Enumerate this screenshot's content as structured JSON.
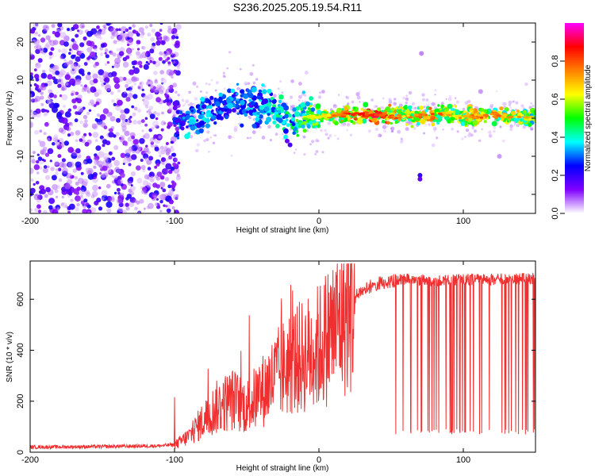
{
  "title": "S236.2025.205.19.54.R11",
  "chart_data": [
    {
      "type": "heatmap",
      "xlabel": "Height of straight line (km)",
      "ylabel": "Frequency (Hz)",
      "xlim": [
        -200,
        150
      ],
      "ylim": [
        -25,
        25
      ],
      "xticks": [
        -200,
        -100,
        0,
        100
      ],
      "yticks": [
        -20,
        -10,
        0,
        10,
        20
      ],
      "colorbar": {
        "label": "Normalized spectral amplitude",
        "range": [
          0.0,
          1.0
        ],
        "ticks": [
          "0.0",
          "0.2",
          "0.4",
          "0.6",
          "0.8"
        ],
        "colormap": [
          "#ffffff",
          "#8000ff",
          "#0000ff",
          "#00ffff",
          "#00ff00",
          "#ffff00",
          "#ff8000",
          "#ff0000",
          "#ff00ff"
        ]
      },
      "ridge": [
        {
          "x": -100,
          "freq": 0.0,
          "amp": 0.25
        },
        {
          "x": -90,
          "freq": -1.0,
          "amp": 0.35
        },
        {
          "x": -80,
          "freq": 0.5,
          "amp": 0.35
        },
        {
          "x": -70,
          "freq": 2.5,
          "amp": 0.3
        },
        {
          "x": -60,
          "freq": 4.0,
          "amp": 0.35
        },
        {
          "x": -50,
          "freq": 4.0,
          "amp": 0.3
        },
        {
          "x": -40,
          "freq": 3.0,
          "amp": 0.35
        },
        {
          "x": -30,
          "freq": 1.5,
          "amp": 0.4
        },
        {
          "x": -20,
          "freq": 0.0,
          "amp": 0.45
        },
        {
          "x": 0,
          "freq": 0.5,
          "amp": 0.55
        },
        {
          "x": 20,
          "freq": 1.0,
          "amp": 0.75
        },
        {
          "x": 40,
          "freq": 0.8,
          "amp": 0.8
        },
        {
          "x": 60,
          "freq": 0.5,
          "amp": 0.6
        },
        {
          "x": 80,
          "freq": 0.8,
          "amp": 0.7
        },
        {
          "x": 90,
          "freq": 1.5,
          "amp": 0.6
        },
        {
          "x": 100,
          "freq": 0.0,
          "amp": 0.6
        },
        {
          "x": 120,
          "freq": 1.0,
          "amp": 0.7
        },
        {
          "x": 150,
          "freq": 0.0,
          "amp": 0.55
        }
      ]
    },
    {
      "type": "line",
      "xlabel": "Height of straight line (km)",
      "ylabel": "SNR (10 * v/v)",
      "xlim": [
        -200,
        150
      ],
      "ylim": [
        0,
        750
      ],
      "xticks": [
        -200,
        -100,
        0,
        100
      ],
      "yticks": [
        0,
        200,
        400,
        600
      ],
      "color": "#f03030",
      "series": [
        {
          "x": [
            -200,
            -150,
            -110,
            -100,
            -90,
            -80,
            -70,
            -60,
            -50,
            -40,
            -30,
            -20,
            -10,
            0,
            10,
            20,
            30,
            40,
            50,
            60,
            80,
            100,
            120,
            150
          ],
          "y": [
            20,
            22,
            25,
            30,
            70,
            140,
            200,
            230,
            200,
            260,
            330,
            390,
            420,
            460,
            540,
            610,
            660,
            690,
            700,
            700,
            695,
            700,
            700,
            705
          ]
        }
      ],
      "dropouts": {
        "x_range": [
          53,
          150
        ],
        "low_value": 70
      }
    }
  ]
}
